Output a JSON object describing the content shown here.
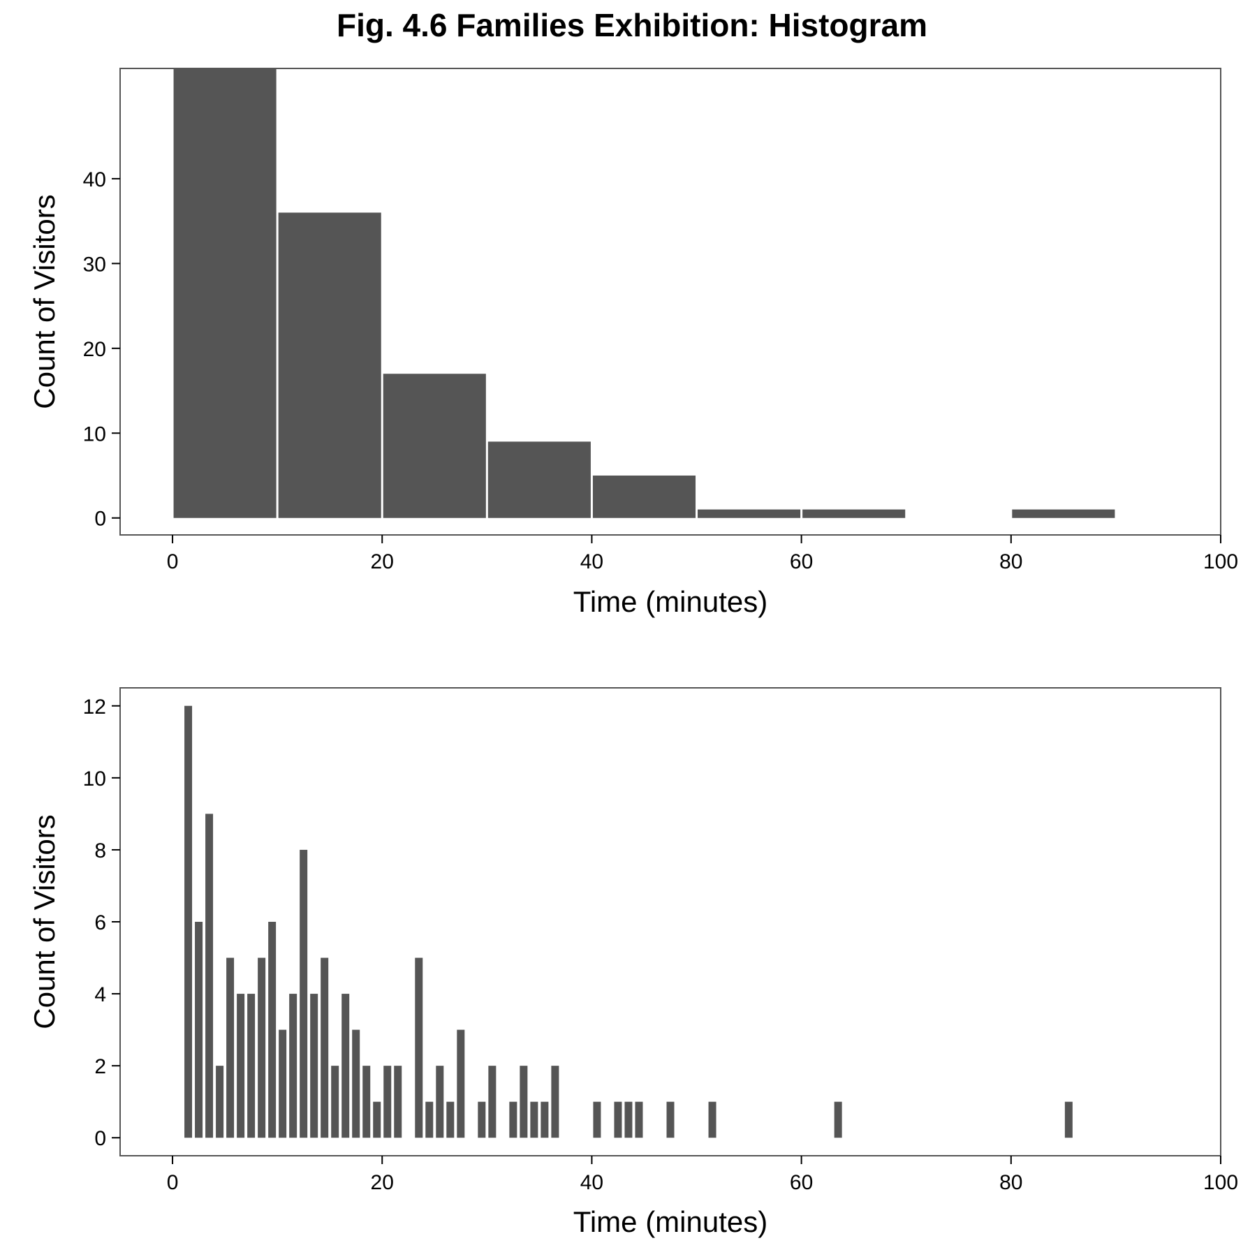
{
  "title": "Fig. 4.6 Families Exhibition: Histogram",
  "chart_data": [
    {
      "type": "bar",
      "title": "",
      "xlabel": "Time (minutes)",
      "ylabel": "Count of Visitors",
      "xlim": [
        -5,
        100
      ],
      "ylim": [
        -2,
        53
      ],
      "xticks": [
        0,
        20,
        40,
        60,
        80,
        100
      ],
      "yticks": [
        0,
        10,
        20,
        30,
        40
      ],
      "bar_color": "#555555",
      "grid": false,
      "bins": [
        {
          "x0": 0,
          "x1": 10,
          "count": 53
        },
        {
          "x0": 10,
          "x1": 20,
          "count": 36
        },
        {
          "x0": 20,
          "x1": 30,
          "count": 17
        },
        {
          "x0": 30,
          "x1": 40,
          "count": 9
        },
        {
          "x0": 40,
          "x1": 50,
          "count": 5
        },
        {
          "x0": 50,
          "x1": 60,
          "count": 1
        },
        {
          "x0": 60,
          "x1": 70,
          "count": 1
        },
        {
          "x0": 70,
          "x1": 80,
          "count": 0
        },
        {
          "x0": 80,
          "x1": 90,
          "count": 1
        }
      ]
    },
    {
      "type": "bar",
      "title": "",
      "xlabel": "Time (minutes)",
      "ylabel": "Count of Visitors",
      "xlim": [
        -5,
        100
      ],
      "ylim": [
        -0.5,
        12.5
      ],
      "xticks": [
        0,
        20,
        40,
        60,
        80,
        100
      ],
      "yticks": [
        0,
        2,
        4,
        6,
        8,
        10,
        12
      ],
      "bar_color": "#555555",
      "grid": false,
      "x": [
        1,
        2,
        3,
        4,
        5,
        6,
        7,
        8,
        9,
        10,
        11,
        12,
        13,
        14,
        15,
        16,
        17,
        18,
        19,
        20,
        21,
        23,
        24,
        25,
        26,
        27,
        29,
        30,
        32,
        33,
        34,
        35,
        36,
        40,
        42,
        43,
        44,
        47,
        51,
        63,
        85
      ],
      "values": [
        12,
        6,
        9,
        2,
        5,
        4,
        4,
        5,
        6,
        3,
        4,
        8,
        4,
        5,
        2,
        4,
        3,
        2,
        1,
        2,
        2,
        5,
        1,
        2,
        1,
        3,
        1,
        2,
        1,
        2,
        1,
        1,
        2,
        1,
        1,
        1,
        1,
        1,
        1,
        1,
        1
      ]
    }
  ]
}
